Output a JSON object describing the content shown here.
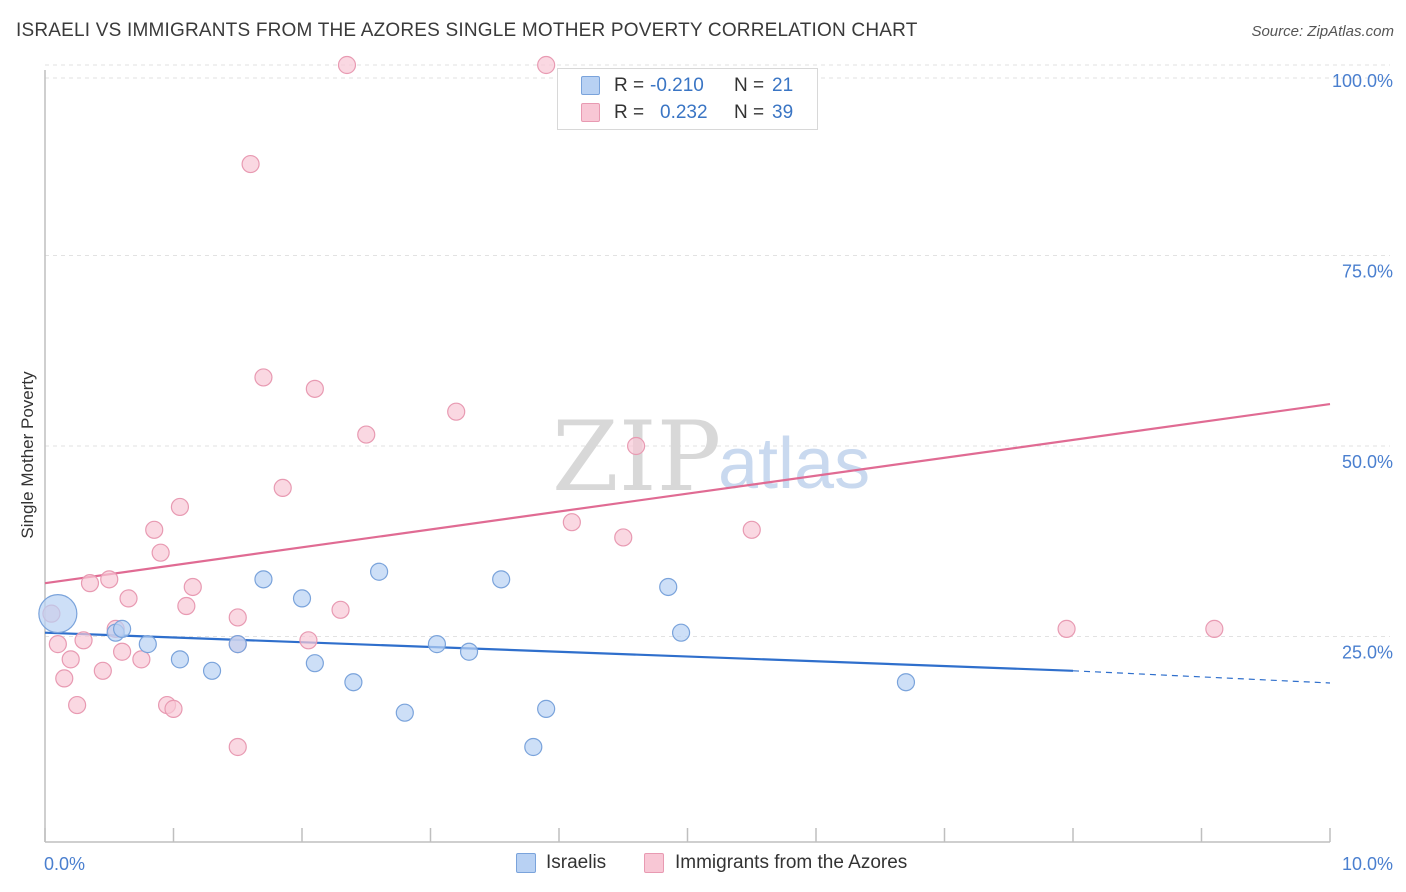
{
  "header": {
    "title": "ISRAELI VS IMMIGRANTS FROM THE AZORES SINGLE MOTHER POVERTY CORRELATION CHART",
    "source": "Source: ZipAtlas.com"
  },
  "watermark": {
    "zip": "ZIP",
    "atlas": "atlas"
  },
  "legend": {
    "rows": [
      {
        "r_label": "R =",
        "r_value": "-0.210",
        "n_label": "N =",
        "n_value": "21"
      },
      {
        "r_label": "R =",
        "r_value": "0.232",
        "n_label": "N =",
        "n_value": "39"
      }
    ]
  },
  "colors": {
    "israelis_fill": "#b8d1f3",
    "israelis_stroke": "#7aa3db",
    "israelis_line": "#2f6fcc",
    "azores_fill": "#f8c7d5",
    "azores_stroke": "#e89ab2",
    "azores_line": "#e06b93",
    "tick_text": "#4a7fcf"
  },
  "chart_data": {
    "type": "scatter",
    "title": "ISRAELI VS IMMIGRANTS FROM THE AZORES SINGLE MOTHER POVERTY CORRELATION CHART",
    "xlabel": "",
    "ylabel": "Single Mother Poverty",
    "xlim": [
      0,
      10
    ],
    "ylim": [
      0,
      100
    ],
    "x_tick_labels": [
      "0.0%",
      "10.0%"
    ],
    "y_ticks": [
      25,
      50,
      75,
      100
    ],
    "y_tick_labels": [
      "25.0%",
      "50.0%",
      "75.0%",
      "100.0%"
    ],
    "grid": true,
    "legend_position": "top-center",
    "series": [
      {
        "name": "Israelis",
        "points": [
          {
            "x": 0.1,
            "y": 28,
            "large": true
          },
          {
            "x": 0.55,
            "y": 25.5
          },
          {
            "x": 0.8,
            "y": 24
          },
          {
            "x": 1.05,
            "y": 22
          },
          {
            "x": 1.3,
            "y": 20.5
          },
          {
            "x": 1.5,
            "y": 24
          },
          {
            "x": 1.7,
            "y": 32.5
          },
          {
            "x": 2.0,
            "y": 30
          },
          {
            "x": 2.1,
            "y": 21.5
          },
          {
            "x": 2.4,
            "y": 19
          },
          {
            "x": 2.6,
            "y": 33.5
          },
          {
            "x": 2.8,
            "y": 15
          },
          {
            "x": 3.05,
            "y": 24
          },
          {
            "x": 3.3,
            "y": 23
          },
          {
            "x": 3.55,
            "y": 32.5
          },
          {
            "x": 3.8,
            "y": 10.5
          },
          {
            "x": 3.9,
            "y": 15.5
          },
          {
            "x": 4.85,
            "y": 31.5
          },
          {
            "x": 4.95,
            "y": 25.5
          },
          {
            "x": 6.7,
            "y": 19
          },
          {
            "x": 0.6,
            "y": 26
          }
        ],
        "trend": {
          "x0": 0,
          "y0": 25.5,
          "x1": 8.0,
          "y1": 20.5,
          "dashed_to_x": 10,
          "dashed_to_y": 18.9
        }
      },
      {
        "name": "Immigrants from the Azores",
        "points": [
          {
            "x": 0.05,
            "y": 28
          },
          {
            "x": 0.1,
            "y": 24
          },
          {
            "x": 0.15,
            "y": 19.5
          },
          {
            "x": 0.2,
            "y": 22
          },
          {
            "x": 0.25,
            "y": 16
          },
          {
            "x": 0.3,
            "y": 24.5
          },
          {
            "x": 0.35,
            "y": 32
          },
          {
            "x": 0.45,
            "y": 20.5
          },
          {
            "x": 0.5,
            "y": 32.5
          },
          {
            "x": 0.55,
            "y": 26
          },
          {
            "x": 0.6,
            "y": 23
          },
          {
            "x": 0.65,
            "y": 30
          },
          {
            "x": 0.75,
            "y": 22
          },
          {
            "x": 0.85,
            "y": 39
          },
          {
            "x": 0.9,
            "y": 36
          },
          {
            "x": 0.95,
            "y": 16
          },
          {
            "x": 1.0,
            "y": 15.5
          },
          {
            "x": 1.05,
            "y": 42
          },
          {
            "x": 1.1,
            "y": 29
          },
          {
            "x": 1.15,
            "y": 31.5
          },
          {
            "x": 1.5,
            "y": 24
          },
          {
            "x": 1.5,
            "y": 10.5
          },
          {
            "x": 1.5,
            "y": 27.5
          },
          {
            "x": 1.6,
            "y": 87
          },
          {
            "x": 1.7,
            "y": 59
          },
          {
            "x": 1.85,
            "y": 44.5
          },
          {
            "x": 2.05,
            "y": 24.5
          },
          {
            "x": 2.1,
            "y": 57.5
          },
          {
            "x": 2.3,
            "y": 28.5
          },
          {
            "x": 2.35,
            "y": 100
          },
          {
            "x": 2.5,
            "y": 51.5
          },
          {
            "x": 3.2,
            "y": 54.5
          },
          {
            "x": 3.9,
            "y": 100
          },
          {
            "x": 4.1,
            "y": 40
          },
          {
            "x": 4.5,
            "y": 38
          },
          {
            "x": 4.6,
            "y": 50
          },
          {
            "x": 5.5,
            "y": 39
          },
          {
            "x": 7.95,
            "y": 26
          },
          {
            "x": 9.1,
            "y": 26
          }
        ],
        "trend": {
          "x0": 0,
          "y0": 32,
          "x1": 10,
          "y1": 55.5
        }
      }
    ]
  }
}
